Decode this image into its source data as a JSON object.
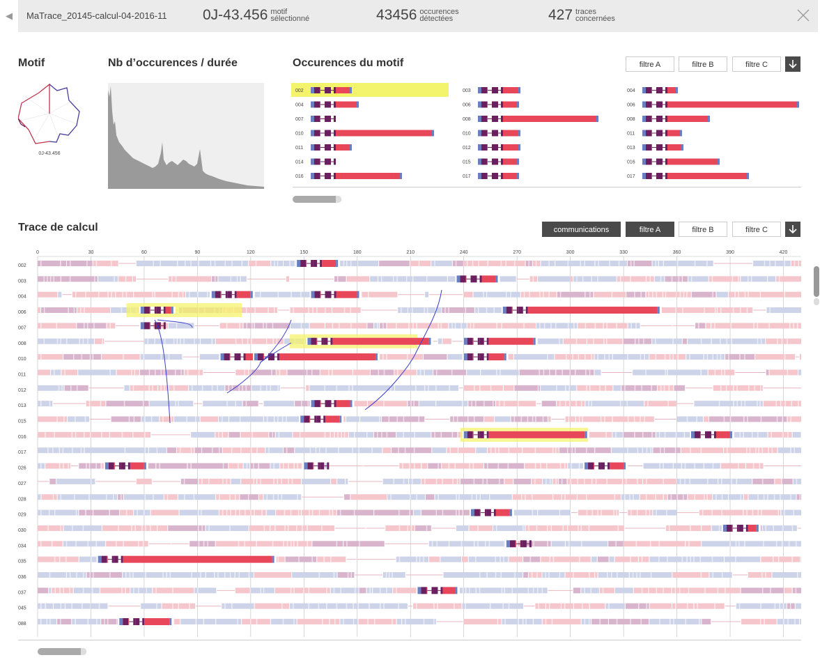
{
  "header": {
    "back_icon": "triangle-left-icon",
    "trace_name": "MaTrace_20145-calcul-04-2016-11",
    "motif": {
      "value": "0J-43.456",
      "label_line1": "motif",
      "label_line2": "sélectionné"
    },
    "occurrences": {
      "value": "43456",
      "label_line1": "occurences",
      "label_line2": "détectées"
    },
    "traces": {
      "value": "427",
      "label_line1": "traces",
      "label_line2": "concernées"
    },
    "close_icon": "close-x-icon"
  },
  "motif_panel": {
    "title": "Motif",
    "label": "0J-43.456",
    "icon": "radar-glyph-icon"
  },
  "histogram_panel": {
    "title": "Nb d’occurences / durée"
  },
  "occurrences_panel": {
    "title": "Occurences du motif",
    "filters": [
      "filtre A",
      "filtre B",
      "filtre C"
    ],
    "download_icon": "arrow-down-icon",
    "columns": [
      [
        {
          "id": "002",
          "selected": true,
          "len": 60
        },
        {
          "id": "004",
          "len": 70
        },
        {
          "id": "007",
          "len": 28
        },
        {
          "id": "010",
          "len": 178
        },
        {
          "id": "011",
          "len": 60
        },
        {
          "id": "014",
          "len": 28
        },
        {
          "id": "016",
          "len": 132
        }
      ],
      [
        {
          "id": "003",
          "len": 62
        },
        {
          "id": "006",
          "len": 60
        },
        {
          "id": "008",
          "len": 174
        },
        {
          "id": "010",
          "len": 62
        },
        {
          "id": "012",
          "len": 62
        },
        {
          "id": "015",
          "len": 60
        },
        {
          "id": "017",
          "len": 60
        }
      ],
      [
        {
          "id": "004",
          "len": 52
        },
        {
          "id": "006",
          "len": 226
        },
        {
          "id": "008",
          "len": 98
        },
        {
          "id": "011",
          "len": 58
        },
        {
          "id": "013",
          "len": 60
        },
        {
          "id": "016",
          "len": 112
        },
        {
          "id": "017",
          "len": 154
        }
      ]
    ]
  },
  "trace_panel": {
    "title": "Trace de calcul",
    "toggle": "communications",
    "filters": [
      "filtre A",
      "filtre B",
      "filtre C"
    ],
    "active_filter": "filtre A",
    "download_icon": "arrow-down-icon",
    "axis_ticks": [
      "0",
      "30",
      "60",
      "90",
      "120",
      "150",
      "180",
      "210",
      "240",
      "270",
      "300",
      "330",
      "360",
      "390",
      "420"
    ],
    "axis_max": 430,
    "rows": [
      "002",
      "003",
      "004",
      "006",
      "007",
      "008",
      "010",
      "011",
      "012",
      "013",
      "015",
      "016",
      "017",
      "026",
      "027",
      "028",
      "029",
      "030",
      "034",
      "035",
      "036",
      "037",
      "045",
      "088"
    ],
    "highlights": [
      {
        "row": "006",
        "start": 50,
        "end": 115
      },
      {
        "row": "008",
        "start": 142,
        "end": 214
      },
      {
        "row": "016",
        "start": 238,
        "end": 310
      }
    ]
  },
  "colors": {
    "purple": "#6b1f5e",
    "red": "#e8475a",
    "blue": "#6a7fc1",
    "pink_faded": "#f5c7cd",
    "blue_faded": "#cdd3e8",
    "purple_faded": "#d8b5cc",
    "highlight": "#f4f36c",
    "connector": "#3a3fc9"
  }
}
